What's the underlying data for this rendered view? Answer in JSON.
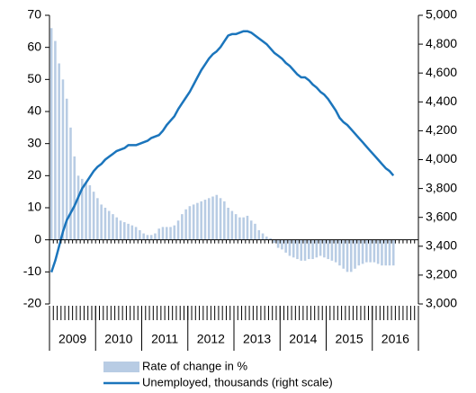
{
  "chart_data": {
    "type": "bar-line",
    "years": [
      "2009",
      "2010",
      "2011",
      "2012",
      "2013",
      "2014",
      "2015",
      "2016"
    ],
    "series": [
      {
        "name": "Rate of change in %",
        "type": "bar",
        "color": "#b8cce4",
        "values": [
          66,
          62,
          55,
          50,
          44,
          35,
          26,
          20,
          19,
          18,
          17,
          15,
          13,
          11,
          10,
          9,
          8,
          7,
          6,
          5.5,
          5,
          4.5,
          4,
          3,
          2,
          1.5,
          1.5,
          2,
          3.5,
          4,
          4,
          4,
          4.5,
          6,
          8,
          9.5,
          10.5,
          11,
          11.5,
          12,
          12.5,
          13,
          13.5,
          14,
          13,
          12,
          10,
          9,
          8,
          7,
          7,
          7.5,
          6,
          5,
          3,
          2,
          1,
          0.5,
          -1,
          -2.5,
          -3,
          -4,
          -5,
          -5.5,
          -6,
          -6.5,
          -6.5,
          -6,
          -6,
          -5.5,
          -5,
          -5.5,
          -6,
          -6.5,
          -7,
          -8,
          -9,
          -10,
          -10,
          -9,
          -8,
          -7.5,
          -7,
          -7,
          -7,
          -7.5,
          -8,
          -8,
          -8,
          -8
        ]
      },
      {
        "name": "Unemployed, thousands (right scale)",
        "type": "line",
        "axis": "y2",
        "color": "#1b75bc",
        "values": [
          3220,
          3300,
          3400,
          3500,
          3580,
          3630,
          3680,
          3740,
          3800,
          3840,
          3880,
          3920,
          3950,
          3970,
          4000,
          4020,
          4040,
          4060,
          4070,
          4080,
          4100,
          4100,
          4100,
          4110,
          4120,
          4130,
          4150,
          4160,
          4170,
          4200,
          4240,
          4270,
          4300,
          4350,
          4390,
          4430,
          4470,
          4520,
          4570,
          4620,
          4660,
          4700,
          4730,
          4750,
          4780,
          4820,
          4860,
          4870,
          4870,
          4880,
          4890,
          4890,
          4880,
          4860,
          4840,
          4820,
          4800,
          4770,
          4740,
          4720,
          4700,
          4670,
          4650,
          4620,
          4590,
          4570,
          4570,
          4550,
          4520,
          4500,
          4470,
          4450,
          4420,
          4380,
          4340,
          4290,
          4260,
          4240,
          4210,
          4180,
          4150,
          4120,
          4090,
          4060,
          4030,
          4000,
          3970,
          3940,
          3920,
          3890
        ]
      }
    ],
    "ylim": [
      -20,
      70
    ],
    "yticks": [
      -20,
      -10,
      0,
      10,
      20,
      30,
      40,
      50,
      60,
      70
    ],
    "y2lim": [
      3000,
      5000
    ],
    "y2ticks": [
      {
        "value": 3000,
        "label": "3,000"
      },
      {
        "value": 3200,
        "label": "3,200"
      },
      {
        "value": 3400,
        "label": "3,400"
      },
      {
        "value": 3600,
        "label": "3,600"
      },
      {
        "value": 3800,
        "label": "3,800"
      },
      {
        "value": 4000,
        "label": "4,000"
      },
      {
        "value": 4200,
        "label": "4,200"
      },
      {
        "value": 4400,
        "label": "4,400"
      },
      {
        "value": 4600,
        "label": "4,600"
      },
      {
        "value": 4800,
        "label": "4,800"
      },
      {
        "value": 5000,
        "label": "5,000"
      }
    ],
    "legend": "bottom"
  }
}
